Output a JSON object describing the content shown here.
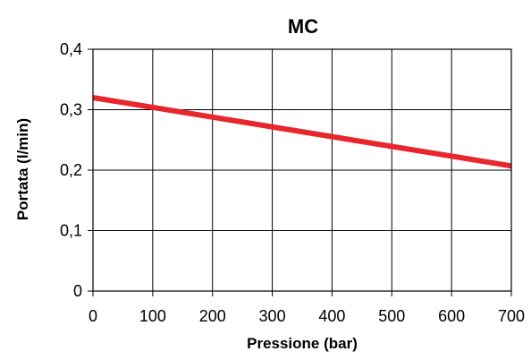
{
  "chart_data": {
    "type": "line",
    "title": "MC",
    "xlabel": "Pressione (bar)",
    "ylabel": "Portata (l/min)",
    "x": [
      0,
      700
    ],
    "xlim": [
      0,
      700
    ],
    "ylim": [
      0,
      0.4
    ],
    "xticks": [
      0,
      100,
      200,
      300,
      400,
      500,
      600,
      700
    ],
    "xtick_labels": [
      "0",
      "100",
      "200",
      "300",
      "400",
      "500",
      "600",
      "700"
    ],
    "yticks": [
      0,
      0.1,
      0.2,
      0.3,
      0.4
    ],
    "ytick_labels": [
      "0",
      "0,1",
      "0,2",
      "0,3",
      "0,4"
    ],
    "grid": true,
    "series": [
      {
        "x": [
          0,
          700
        ],
        "values": [
          0.32,
          0.207
        ],
        "color": "#e8262d"
      }
    ]
  }
}
